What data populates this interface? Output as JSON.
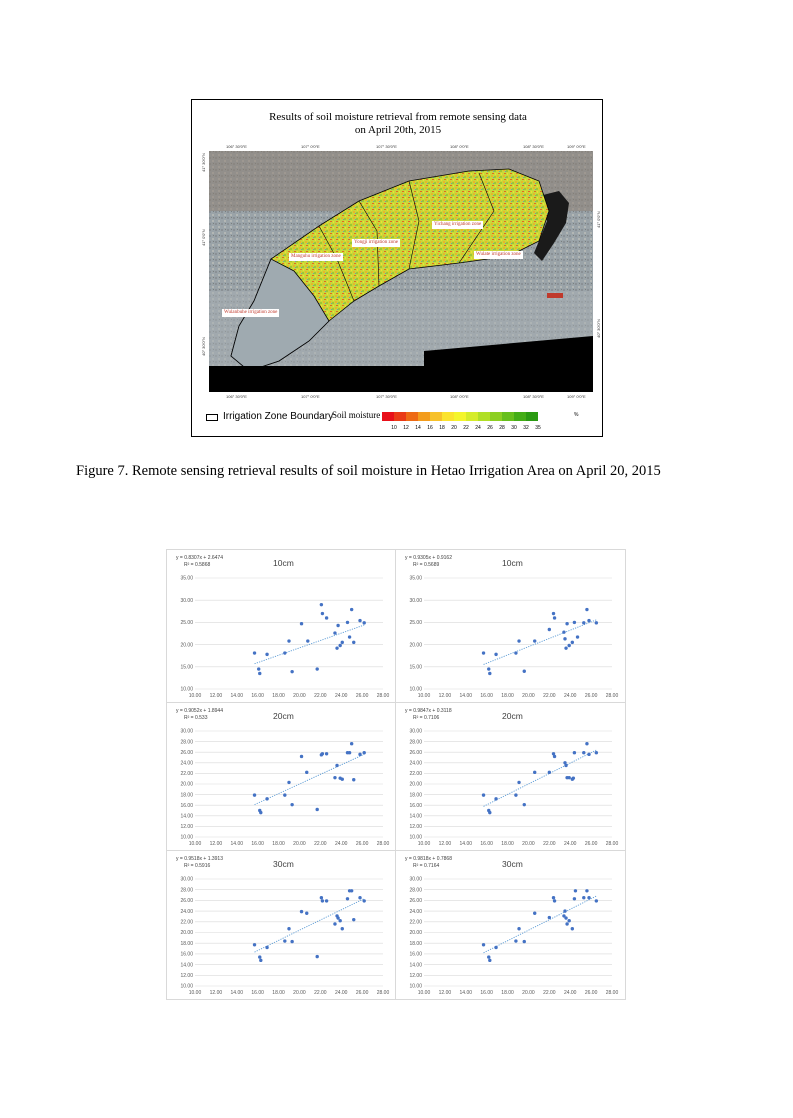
{
  "map_figure": {
    "title_line1": "Results of soil moisture retrieval from remote sensing data",
    "title_line2": "on April 20th, 2015",
    "top_coords": [
      "106° 30′0″E",
      "107° 0′0″E",
      "107° 30′0″E",
      "108° 0′0″E",
      "108° 30′0″E",
      "109° 0′0″E"
    ],
    "bottom_coords": [
      "106° 30′0″E",
      "107° 0′0″E",
      "107° 30′0″E",
      "108° 0′0″E",
      "108° 30′0″E",
      "109° 0′0″E"
    ],
    "left_coords": [
      "41° 30′0″N",
      "41° 0′0″N",
      "40° 30′0″N"
    ],
    "right_coords": [
      "41° 0′0″N",
      "40° 30′0″N"
    ],
    "zones": {
      "yichang": "Yichang irrigation zone",
      "yongji": "Yongji irrigation zone",
      "manguhu": "Manguhu irrigation zone",
      "wulate": "Wulate irrigation zone",
      "wulanbuhe": "Wulanbuhe irrigation zone"
    },
    "legend": {
      "boundary_label": "Irrigation Zone Boundary",
      "soil_title": "Soil moisture",
      "unit": "%",
      "values": [
        "10",
        "12",
        "14",
        "16",
        "18",
        "20",
        "22",
        "24",
        "26",
        "28",
        "30",
        "32",
        "35"
      ],
      "colors": [
        "#e8101a",
        "#ea3a16",
        "#ee6a14",
        "#f39c1c",
        "#f7c12a",
        "#fbe32e",
        "#f4f52c",
        "#d5ec2a",
        "#b0df26",
        "#8ccf22",
        "#66bf1c",
        "#43ad16",
        "#2a9a12"
      ]
    }
  },
  "caption": "Figure 7. Remote sensing retrieval results of soil moisture in Hetao Irrigation Area on April 20, 2015",
  "chart_data": [
    {
      "type": "scatter",
      "depth": "10cm",
      "equation": "y = 0.8307x + 2.6474",
      "r2": "R² = 0.5868",
      "slope": 0.8307,
      "intercept": 2.6474,
      "xlim": [
        10,
        28
      ],
      "ylim": [
        10,
        35
      ],
      "ystep": 5,
      "xticks": [
        "10.00",
        "12.00",
        "14.00",
        "16.00",
        "18.00",
        "20.00",
        "22.00",
        "24.00",
        "26.00",
        "28.00"
      ],
      "yticks": [
        "10.00",
        "15.00",
        "20.00",
        "25.00",
        "30.00",
        "35.00"
      ],
      "points": [
        [
          15.7,
          18.1
        ],
        [
          16.1,
          14.5
        ],
        [
          16.2,
          13.5
        ],
        [
          16.9,
          17.8
        ],
        [
          18.6,
          18.1
        ],
        [
          19.0,
          20.8
        ],
        [
          19.3,
          13.9
        ],
        [
          20.2,
          24.7
        ],
        [
          20.8,
          20.8
        ],
        [
          21.7,
          14.5
        ],
        [
          22.1,
          29.0
        ],
        [
          22.2,
          27.0
        ],
        [
          22.6,
          26.0
        ],
        [
          23.4,
          22.6
        ],
        [
          23.6,
          19.2
        ],
        [
          23.7,
          24.3
        ],
        [
          23.9,
          19.8
        ],
        [
          24.1,
          20.5
        ],
        [
          24.6,
          25.0
        ],
        [
          24.8,
          21.7
        ],
        [
          25.0,
          27.9
        ],
        [
          25.2,
          20.5
        ],
        [
          25.8,
          25.4
        ],
        [
          26.2,
          24.9
        ]
      ]
    },
    {
      "type": "scatter",
      "depth": "10cm",
      "equation": "y = 0.9305x + 0.9162",
      "r2": "R² = 0.5689",
      "slope": 0.9305,
      "intercept": 0.9162,
      "xlim": [
        10,
        28
      ],
      "ylim": [
        10,
        35
      ],
      "ystep": 5,
      "xticks": [
        "10.00",
        "12.00",
        "14.00",
        "16.00",
        "18.00",
        "20.00",
        "22.00",
        "24.00",
        "26.00",
        "28.00"
      ],
      "yticks": [
        "10.00",
        "15.00",
        "20.00",
        "25.00",
        "30.00",
        "35.00"
      ],
      "points": [
        [
          15.7,
          18.1
        ],
        [
          16.2,
          14.5
        ],
        [
          16.3,
          13.5
        ],
        [
          16.9,
          17.8
        ],
        [
          18.8,
          18.1
        ],
        [
          19.1,
          20.8
        ],
        [
          19.6,
          14.0
        ],
        [
          20.6,
          20.8
        ],
        [
          22.0,
          23.4
        ],
        [
          22.4,
          27.0
        ],
        [
          22.5,
          26.0
        ],
        [
          23.4,
          22.8
        ],
        [
          23.5,
          21.3
        ],
        [
          23.6,
          19.2
        ],
        [
          23.7,
          24.7
        ],
        [
          23.9,
          19.8
        ],
        [
          24.2,
          20.5
        ],
        [
          24.4,
          25.0
        ],
        [
          24.7,
          21.7
        ],
        [
          25.3,
          24.9
        ],
        [
          25.6,
          27.9
        ],
        [
          25.8,
          25.4
        ],
        [
          26.5,
          24.9
        ]
      ]
    },
    {
      "type": "scatter",
      "depth": "20cm",
      "equation": "y = 0.9052x + 1.8944",
      "r2": "R² = 0.533",
      "slope": 0.9052,
      "intercept": 1.8944,
      "xlim": [
        10,
        28
      ],
      "ylim": [
        10,
        30
      ],
      "ystep": 2,
      "xticks": [
        "10.00",
        "12.00",
        "14.00",
        "16.00",
        "18.00",
        "20.00",
        "22.00",
        "24.00",
        "26.00",
        "28.00"
      ],
      "yticks": [
        "10.00",
        "12.00",
        "14.00",
        "16.00",
        "18.00",
        "20.00",
        "22.00",
        "24.00",
        "26.00",
        "28.00",
        "30.00"
      ],
      "points": [
        [
          15.7,
          17.9
        ],
        [
          16.2,
          15.0
        ],
        [
          16.3,
          14.6
        ],
        [
          16.9,
          17.2
        ],
        [
          18.6,
          17.9
        ],
        [
          19.0,
          20.3
        ],
        [
          19.3,
          16.1
        ],
        [
          20.2,
          25.2
        ],
        [
          20.7,
          22.2
        ],
        [
          21.7,
          15.2
        ],
        [
          22.1,
          25.5
        ],
        [
          22.2,
          25.7
        ],
        [
          22.6,
          25.7
        ],
        [
          23.4,
          21.2
        ],
        [
          23.6,
          23.5
        ],
        [
          23.9,
          21.1
        ],
        [
          24.1,
          20.9
        ],
        [
          24.6,
          25.9
        ],
        [
          24.8,
          25.9
        ],
        [
          25.0,
          27.6
        ],
        [
          25.2,
          20.8
        ],
        [
          25.8,
          25.6
        ],
        [
          26.2,
          25.9
        ]
      ]
    },
    {
      "type": "scatter",
      "depth": "20cm",
      "equation": "y = 0.9847x + 0.3118",
      "r2": "R² = 0.7106",
      "slope": 0.9847,
      "intercept": 0.3118,
      "xlim": [
        10,
        28
      ],
      "ylim": [
        10,
        30
      ],
      "ystep": 2,
      "xticks": [
        "10.00",
        "12.00",
        "14.00",
        "16.00",
        "18.00",
        "20.00",
        "22.00",
        "24.00",
        "26.00",
        "28.00"
      ],
      "yticks": [
        "10.00",
        "12.00",
        "14.00",
        "16.00",
        "18.00",
        "20.00",
        "22.00",
        "24.00",
        "26.00",
        "28.00",
        "30.00"
      ],
      "points": [
        [
          15.7,
          17.9
        ],
        [
          16.2,
          15.0
        ],
        [
          16.3,
          14.6
        ],
        [
          16.9,
          17.2
        ],
        [
          18.8,
          17.9
        ],
        [
          19.1,
          20.3
        ],
        [
          19.6,
          16.1
        ],
        [
          20.6,
          22.2
        ],
        [
          22.0,
          22.2
        ],
        [
          22.4,
          25.7
        ],
        [
          22.5,
          25.2
        ],
        [
          23.5,
          24.0
        ],
        [
          23.6,
          23.5
        ],
        [
          23.7,
          21.2
        ],
        [
          23.9,
          21.2
        ],
        [
          24.2,
          20.9
        ],
        [
          24.3,
          21.1
        ],
        [
          24.4,
          25.9
        ],
        [
          25.3,
          25.9
        ],
        [
          25.6,
          27.6
        ],
        [
          25.8,
          25.6
        ],
        [
          26.5,
          25.9
        ]
      ]
    },
    {
      "type": "scatter",
      "depth": "30cm",
      "equation": "y = 0.9518x + 1.3913",
      "r2": "R² = 0.5916",
      "slope": 0.9518,
      "intercept": 1.3913,
      "xlim": [
        10,
        28
      ],
      "ylim": [
        10,
        30
      ],
      "ystep": 2,
      "xticks": [
        "10.00",
        "12.00",
        "14.00",
        "16.00",
        "18.00",
        "20.00",
        "22.00",
        "24.00",
        "26.00",
        "28.00"
      ],
      "yticks": [
        "10.00",
        "12.00",
        "14.00",
        "16.00",
        "18.00",
        "20.00",
        "22.00",
        "24.00",
        "26.00",
        "28.00",
        "30.00"
      ],
      "points": [
        [
          15.7,
          17.7
        ],
        [
          16.2,
          15.4
        ],
        [
          16.3,
          14.8
        ],
        [
          16.9,
          17.2
        ],
        [
          18.6,
          18.4
        ],
        [
          19.0,
          20.7
        ],
        [
          19.3,
          18.3
        ],
        [
          20.2,
          23.9
        ],
        [
          20.7,
          23.6
        ],
        [
          21.7,
          15.5
        ],
        [
          22.1,
          26.5
        ],
        [
          22.2,
          25.9
        ],
        [
          22.6,
          25.9
        ],
        [
          23.4,
          21.6
        ],
        [
          23.6,
          23.1
        ],
        [
          23.7,
          22.7
        ],
        [
          23.9,
          22.2
        ],
        [
          24.1,
          20.7
        ],
        [
          24.6,
          26.3
        ],
        [
          24.8,
          27.8
        ],
        [
          25.0,
          27.8
        ],
        [
          25.2,
          22.4
        ],
        [
          25.8,
          26.5
        ],
        [
          26.2,
          25.9
        ]
      ]
    },
    {
      "type": "scatter",
      "depth": "30cm",
      "equation": "y = 0.9818x + 0.7868",
      "r2": "R² = 0.7164",
      "slope": 0.9818,
      "intercept": 0.7868,
      "xlim": [
        10,
        28
      ],
      "ylim": [
        10,
        30
      ],
      "ystep": 2,
      "xticks": [
        "10.00",
        "12.00",
        "14.00",
        "16.00",
        "18.00",
        "20.00",
        "22.00",
        "24.00",
        "26.00",
        "28.00"
      ],
      "yticks": [
        "10.00",
        "12.00",
        "14.00",
        "16.00",
        "18.00",
        "20.00",
        "22.00",
        "24.00",
        "26.00",
        "28.00",
        "30.00"
      ],
      "points": [
        [
          15.7,
          17.7
        ],
        [
          16.2,
          15.4
        ],
        [
          16.3,
          14.8
        ],
        [
          16.9,
          17.2
        ],
        [
          18.8,
          18.4
        ],
        [
          19.1,
          20.7
        ],
        [
          19.6,
          18.3
        ],
        [
          20.6,
          23.6
        ],
        [
          22.0,
          22.8
        ],
        [
          22.4,
          26.5
        ],
        [
          22.5,
          25.9
        ],
        [
          23.4,
          23.1
        ],
        [
          23.5,
          24.0
        ],
        [
          23.6,
          22.7
        ],
        [
          23.7,
          21.6
        ],
        [
          23.9,
          22.2
        ],
        [
          24.2,
          20.7
        ],
        [
          24.4,
          26.3
        ],
        [
          24.5,
          27.8
        ],
        [
          25.3,
          26.5
        ],
        [
          25.6,
          27.8
        ],
        [
          25.8,
          26.5
        ],
        [
          26.5,
          25.9
        ]
      ]
    }
  ]
}
